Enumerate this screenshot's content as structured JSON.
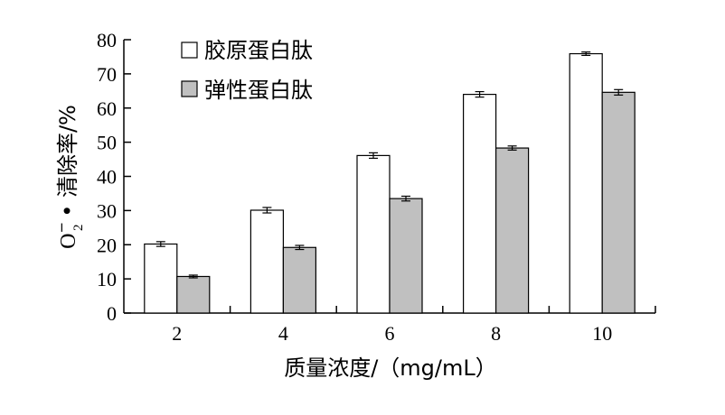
{
  "chart_data": {
    "type": "bar",
    "categories": [
      "2",
      "4",
      "6",
      "8",
      "10"
    ],
    "series": [
      {
        "name": "胶原蛋白肽",
        "values": [
          20.2,
          30.1,
          46.1,
          64.0,
          75.9
        ],
        "errors": [
          0.7,
          0.8,
          0.8,
          0.8,
          0.5
        ],
        "color": "#ffffff"
      },
      {
        "name": "弹性蛋白肽",
        "values": [
          10.7,
          19.2,
          33.5,
          48.3,
          64.6
        ],
        "errors": [
          0.4,
          0.6,
          0.7,
          0.6,
          0.8
        ],
        "color": "#c0c0c0"
      }
    ],
    "xlabel": "质量浓度/（mg/mL）",
    "ylabel": {
      "main": "O",
      "sup": "−",
      "sub": "2",
      "rest": " • 清除率/%"
    },
    "ylim": [
      0,
      80
    ],
    "yticks": [
      0,
      10,
      20,
      30,
      40,
      50,
      60,
      70,
      80
    ],
    "grid": false,
    "legend_position": "top-left"
  }
}
